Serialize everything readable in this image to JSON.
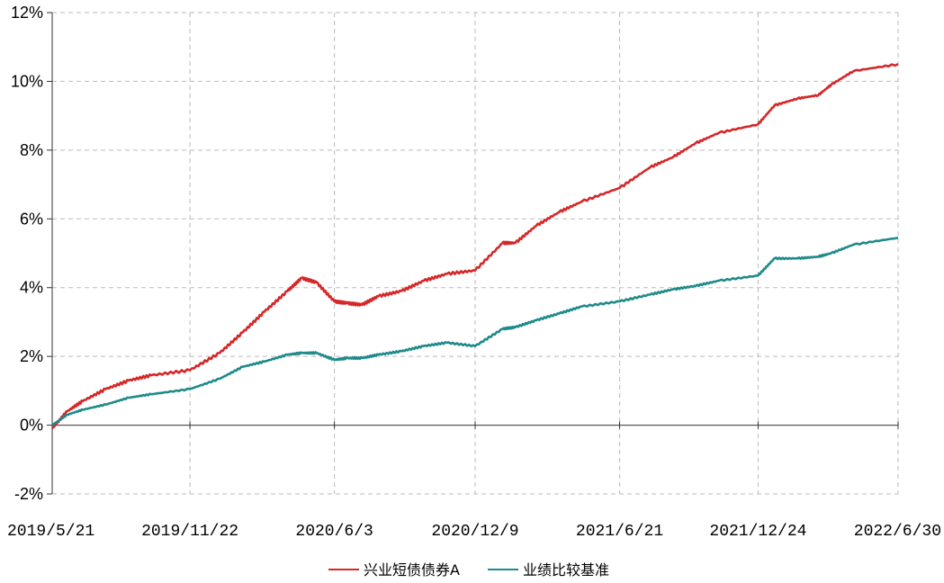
{
  "chart_data": {
    "type": "line",
    "title": "",
    "xlabel": "",
    "ylabel": "",
    "ylim": [
      -2,
      12
    ],
    "y_ticks": [
      -2,
      0,
      2,
      4,
      6,
      8,
      10,
      12
    ],
    "y_tick_labels": [
      "-2%",
      "0%",
      "2%",
      "4%",
      "6%",
      "8%",
      "10%",
      "12%"
    ],
    "x_ticks": [
      "2019/5/21",
      "2019/11/22",
      "2020/6/3",
      "2020/12/9",
      "2021/6/21",
      "2021/12/24",
      "2022/6/30"
    ],
    "grid": true,
    "legend_position": "bottom-center",
    "series": [
      {
        "name": "兴业短债债券A",
        "color": "#d62728",
        "x": [
          "2019/5/21",
          "2019/6/10",
          "2019/7/1",
          "2019/8/1",
          "2019/9/1",
          "2019/10/1",
          "2019/11/22",
          "2020/1/1",
          "2020/2/1",
          "2020/3/1",
          "2020/4/1",
          "2020/4/20",
          "2020/5/10",
          "2020/6/3",
          "2020/6/20",
          "2020/7/10",
          "2020/8/1",
          "2020/9/1",
          "2020/10/1",
          "2020/11/1",
          "2020/12/9",
          "2021/1/15",
          "2021/2/1",
          "2021/3/1",
          "2021/4/1",
          "2021/5/1",
          "2021/6/21",
          "2021/8/1",
          "2021/9/1",
          "2021/10/1",
          "2021/11/1",
          "2021/12/24",
          "2022/1/15",
          "2022/2/15",
          "2022/3/15",
          "2022/4/1",
          "2022/5/1",
          "2022/6/30"
        ],
        "values": [
          -0.1,
          0.4,
          0.7,
          1.05,
          1.3,
          1.45,
          1.6,
          2.1,
          2.7,
          3.3,
          3.9,
          4.28,
          4.15,
          3.6,
          3.55,
          3.5,
          3.75,
          3.9,
          4.2,
          4.4,
          4.5,
          5.3,
          5.3,
          5.8,
          6.2,
          6.5,
          6.9,
          7.5,
          7.8,
          8.2,
          8.5,
          8.75,
          9.3,
          9.5,
          9.6,
          9.9,
          10.3,
          10.5
        ]
      },
      {
        "name": "业绩比较基准",
        "color": "#1f8a8a",
        "x": [
          "2019/5/21",
          "2019/6/10",
          "2019/7/1",
          "2019/8/1",
          "2019/9/1",
          "2019/10/1",
          "2019/11/22",
          "2020/1/1",
          "2020/2/1",
          "2020/3/1",
          "2020/4/1",
          "2020/4/20",
          "2020/5/10",
          "2020/6/3",
          "2020/6/20",
          "2020/7/10",
          "2020/8/1",
          "2020/9/1",
          "2020/10/1",
          "2020/11/1",
          "2020/12/9",
          "2021/1/15",
          "2021/2/1",
          "2021/3/1",
          "2021/4/1",
          "2021/5/1",
          "2021/6/21",
          "2021/8/1",
          "2021/9/1",
          "2021/10/1",
          "2021/11/1",
          "2021/12/24",
          "2022/1/15",
          "2022/2/15",
          "2022/3/15",
          "2022/4/1",
          "2022/5/1",
          "2022/6/30"
        ],
        "values": [
          0.0,
          0.3,
          0.45,
          0.6,
          0.8,
          0.9,
          1.05,
          1.35,
          1.7,
          1.85,
          2.05,
          2.1,
          2.1,
          1.9,
          1.95,
          1.95,
          2.05,
          2.15,
          2.3,
          2.4,
          2.3,
          2.8,
          2.85,
          3.05,
          3.25,
          3.45,
          3.6,
          3.8,
          3.95,
          4.05,
          4.2,
          4.35,
          4.85,
          4.85,
          4.9,
          5.0,
          5.25,
          5.45
        ]
      }
    ]
  }
}
